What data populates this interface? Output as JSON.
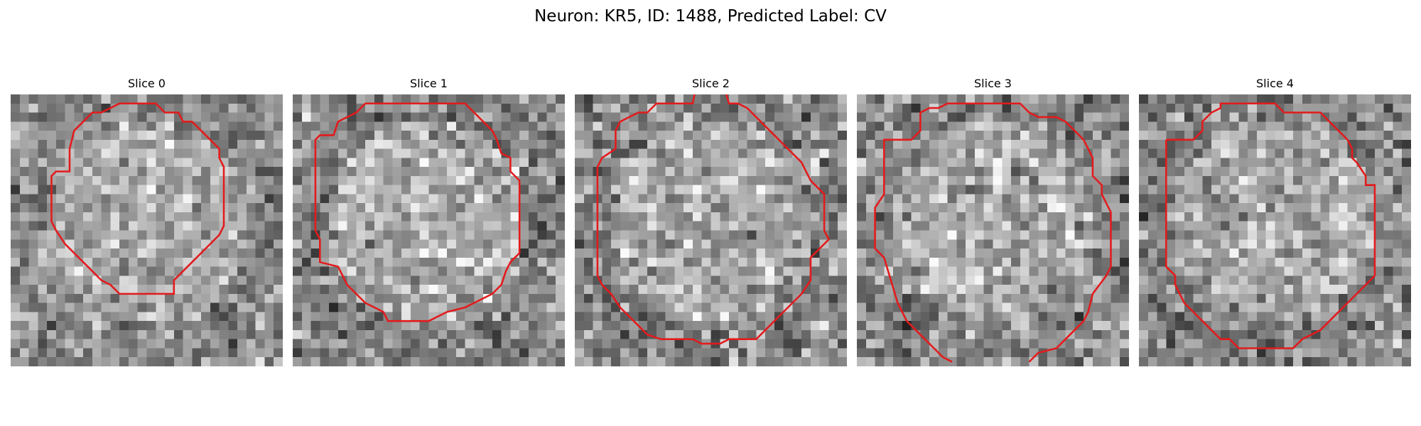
{
  "figure": {
    "title": "Neuron: KR5, ID: 1488, Predicted Label: CV"
  },
  "contour_color": "#e41a1c",
  "panels": [
    {
      "title": "Slice 0",
      "seed": 11,
      "contrast": 0.9
    },
    {
      "title": "Slice 1",
      "seed": 23,
      "contrast": 1.0
    },
    {
      "title": "Slice 2",
      "seed": 37,
      "contrast": 1.05
    },
    {
      "title": "Slice 3",
      "seed": 41,
      "contrast": 1.0
    },
    {
      "title": "Slice 4",
      "seed": 53,
      "contrast": 0.95
    }
  ]
}
